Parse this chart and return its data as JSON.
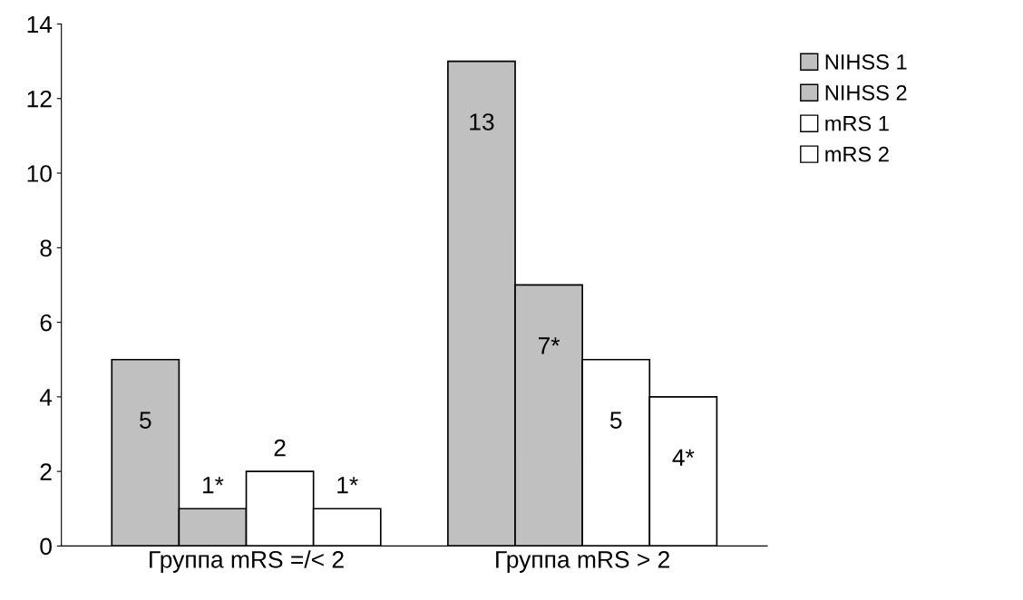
{
  "chart_data": {
    "type": "bar",
    "categories": [
      "Группа mRS =/< 2",
      "Группа mRS > 2"
    ],
    "series": [
      {
        "name": "NIHSS 1",
        "color": "#c0c0c0",
        "values": [
          5,
          13
        ],
        "value_labels": [
          "5",
          "13"
        ]
      },
      {
        "name": "NIHSS 2",
        "color": "#c0c0c0",
        "values": [
          1,
          7
        ],
        "value_labels": [
          "1*",
          "7*"
        ]
      },
      {
        "name": "mRS 1",
        "color": "#ffffff",
        "values": [
          2,
          5
        ],
        "value_labels": [
          "2",
          "5"
        ]
      },
      {
        "name": "mRS 2",
        "color": "#ffffff",
        "values": [
          1,
          4
        ],
        "value_labels": [
          "1*",
          "4*"
        ]
      }
    ],
    "ylim": [
      0,
      14
    ],
    "yticks": [
      0,
      2,
      4,
      6,
      8,
      10,
      12,
      14
    ],
    "grid": false,
    "legend": "right"
  }
}
